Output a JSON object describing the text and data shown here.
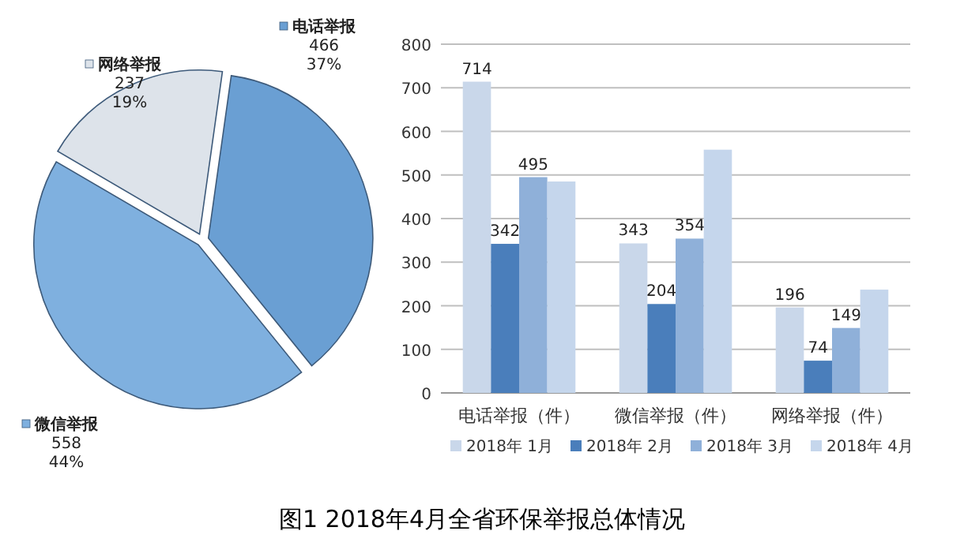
{
  "chart_data": [
    {
      "type": "pie",
      "categories": [
        "电话举报",
        "微信举报",
        "网络举报"
      ],
      "values": [
        466,
        558,
        237
      ],
      "colors": [
        "#6a9fd3",
        "#7fb0df",
        "#dde3ea"
      ],
      "value_labels": [
        "466\n37%",
        "558\n44%",
        "237\n19%"
      ],
      "legend": "top right",
      "annotations": [
        "图1  2018年4月全省环保举报总体情况"
      ]
    },
    {
      "type": "bar",
      "categories": [
        "电话举报（件）",
        "微信举报（件）",
        "网络举报（件）"
      ],
      "series": [
        {
          "name": "2018年 1月",
          "color": "#c9d7ea",
          "values": [
            714,
            343,
            196
          ],
          "value_labels": [
            "714",
            "343",
            "196"
          ]
        },
        {
          "name": "2018年 2月",
          "color": "#4a7ebb",
          "values": [
            342,
            204,
            74
          ],
          "value_labels": [
            "342",
            "204",
            "74"
          ]
        },
        {
          "name": "2018年 3月",
          "color": "#8fb0d9",
          "values": [
            495,
            354,
            149
          ],
          "value_labels": [
            "495",
            "354",
            "149"
          ]
        },
        {
          "name": "2018年 4月",
          "color": "#c5d6ec",
          "values": [
            485,
            558,
            237
          ]
        }
      ],
      "ylim": [
        0,
        800
      ],
      "yticks": [
        0,
        100,
        200,
        300,
        400,
        500,
        600,
        700,
        800
      ],
      "grid": "y",
      "legend": "bottom"
    }
  ]
}
